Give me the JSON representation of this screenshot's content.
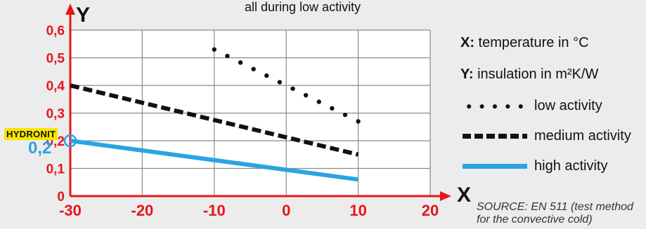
{
  "chart_data": {
    "type": "line",
    "title": "all during low activity",
    "xlabel": "X",
    "ylabel": "Y",
    "xlim": [
      -30,
      20
    ],
    "ylim": [
      0,
      0.6
    ],
    "x_ticks": [
      "-30",
      "-20",
      "-10",
      "0",
      "10",
      "20"
    ],
    "y_ticks": [
      "0",
      "0,1",
      "0,2",
      "0,3",
      "0,4",
      "0,5",
      "0,6"
    ],
    "grid": true,
    "legend_position": "right",
    "series": [
      {
        "name": "low activity",
        "style": "dotted",
        "color": "#111111",
        "x": [
          -10,
          10
        ],
        "y": [
          0.53,
          0.27
        ]
      },
      {
        "name": "medium activity",
        "style": "dashed",
        "color": "#111111",
        "x": [
          -30,
          10
        ],
        "y": [
          0.4,
          0.15
        ]
      },
      {
        "name": "high activity",
        "style": "solid",
        "color": "#2aa4e1",
        "x": [
          -30,
          10
        ],
        "y": [
          0.2,
          0.06
        ]
      }
    ],
    "annotation": {
      "label": "HYDRONIT",
      "value": "0,2",
      "x": -30,
      "y": 0.2,
      "label_color": "#f7e600",
      "value_color": "#2aa4e1"
    },
    "legend_notes": [
      {
        "key": "X:",
        "text": " temperature in °C"
      },
      {
        "key": "Y:",
        "text": " insulation in m²K/W"
      }
    ],
    "source": "SOURCE: EN 511 (test method for the convective cold)"
  },
  "colors": {
    "axis": "#e8141c",
    "grid": "#8a8a8a",
    "plot_bg": "#ffffff",
    "page_bg": "#ececec"
  }
}
